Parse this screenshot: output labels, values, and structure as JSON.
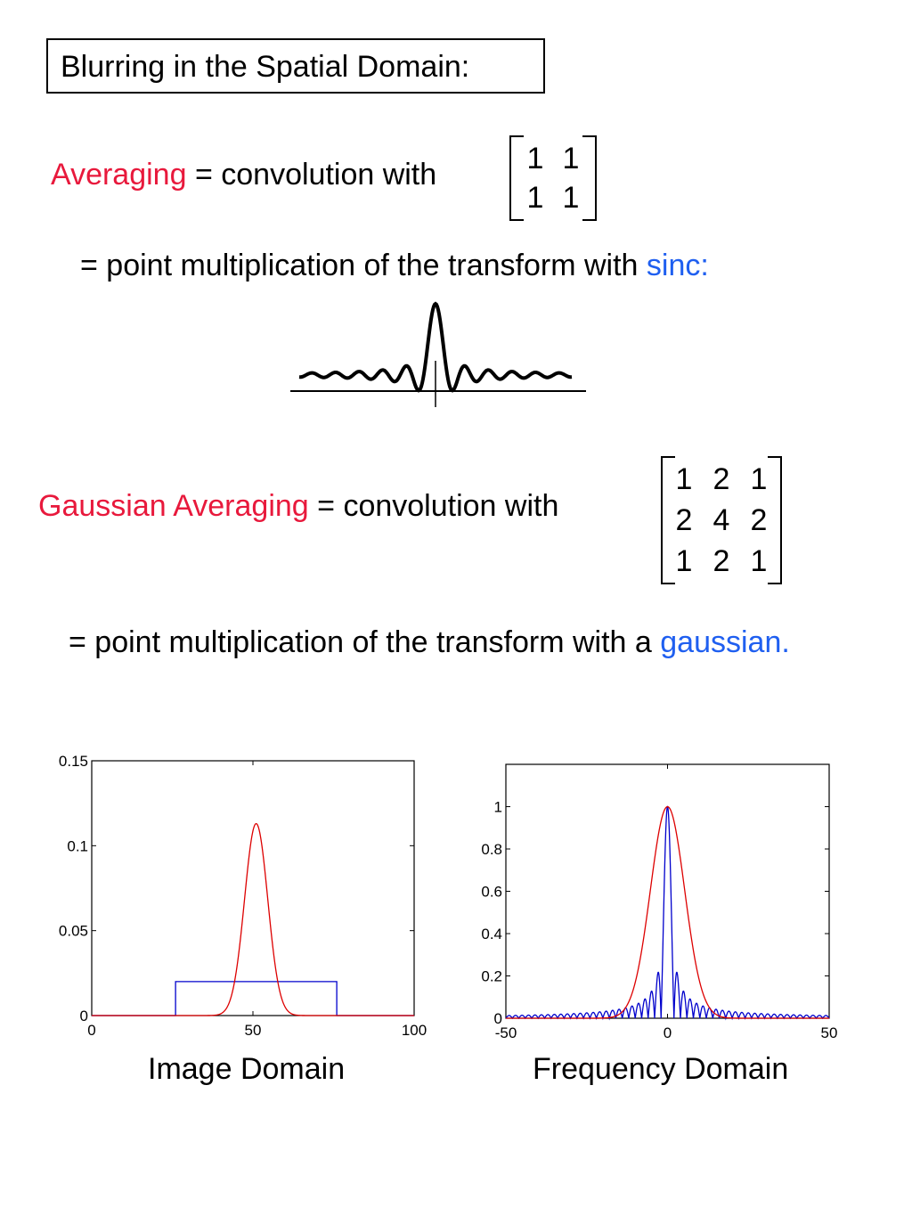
{
  "title": "Blurring in the Spatial Domain:",
  "line1": {
    "term": "Averaging",
    "rest": " = convolution with"
  },
  "matrix1": [
    [
      "1",
      "1"
    ],
    [
      "1",
      "1"
    ]
  ],
  "line2": {
    "text": "= point multiplication of the transform with ",
    "highlight": "sinc:"
  },
  "line3": {
    "term": "Gaussian Averaging",
    "rest": " = convolution with"
  },
  "matrix2": [
    [
      "1",
      "2",
      "1"
    ],
    [
      "2",
      "4",
      "2"
    ],
    [
      "1",
      "2",
      "1"
    ]
  ],
  "line4": {
    "text": "= point multiplication of the transform with a ",
    "highlight": "gaussian."
  },
  "colors": {
    "term": "#e8193c",
    "highlight": "#1f5ff0",
    "series_blue": "#0000cc",
    "series_red": "#dd0000"
  },
  "sinc_icon": "sinc-curve",
  "chart_data": [
    {
      "type": "line",
      "title": "Image Domain",
      "xlim": [
        0,
        100
      ],
      "ylim": [
        0,
        0.15
      ],
      "xticks": [
        "0",
        "50",
        "100"
      ],
      "yticks": [
        "0",
        "0.05",
        "0.1",
        "0.15"
      ],
      "grid": false,
      "series": [
        {
          "color": "blue",
          "kind": "box",
          "x_start": 26,
          "x_end": 76,
          "value": 0.02
        },
        {
          "color": "red",
          "kind": "gaussian",
          "center": 51,
          "peak": 0.113,
          "sigma": 3.6
        }
      ]
    },
    {
      "type": "line",
      "title": "Frequency Domain",
      "xlim": [
        -50,
        50
      ],
      "ylim": [
        0,
        1.2
      ],
      "xticks": [
        "-50",
        "0",
        "50"
      ],
      "yticks": [
        "0",
        "0.2",
        "0.4",
        "0.6",
        "0.8",
        "1"
      ],
      "grid": false,
      "series": [
        {
          "color": "blue",
          "kind": "abs-sinc",
          "peak": 1.0,
          "zero_spacing": 2
        },
        {
          "color": "red",
          "kind": "gaussian",
          "center": 0,
          "peak": 1.0,
          "sigma": 5.3
        }
      ]
    }
  ]
}
